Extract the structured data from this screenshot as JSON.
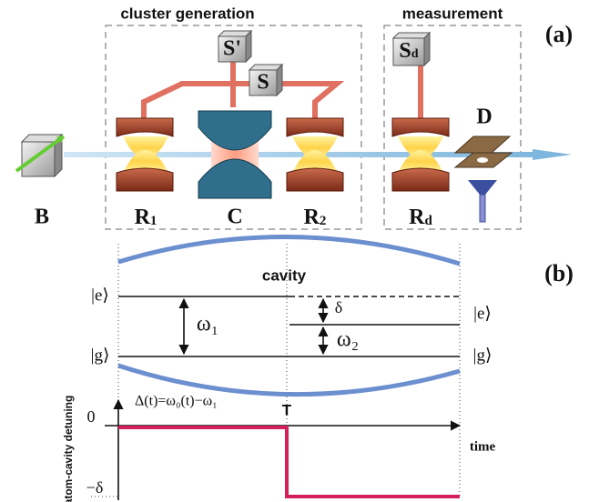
{
  "panel_a": {
    "label": "(a)",
    "cluster_box_title": "cluster generation",
    "measurement_box_title": "measurement",
    "sources": {
      "s_prime": "S'",
      "s": "S",
      "s_d": {
        "main": "S",
        "sub": "d"
      }
    },
    "components": {
      "b": "B",
      "r1": {
        "main": "R",
        "sub": "1"
      },
      "c": "C",
      "r2": {
        "main": "R",
        "sub": "2"
      },
      "rd": {
        "main": "R",
        "sub": "d"
      },
      "d": "D"
    }
  },
  "panel_b": {
    "label": "(b)",
    "cavity": "cavity",
    "levels": {
      "e_left": "|e⟩",
      "g_left": "|g⟩",
      "e_right": "|e⟩",
      "g_right": "|g⟩"
    },
    "omega1": "ω₁",
    "delta": "δ",
    "omega2": "ω₂",
    "y_axis_label": "atom-cavity detuning",
    "formula": "Δ(t)=ω₀(t)−ω₁",
    "zero": "0",
    "minus_delta": "−δ",
    "t_mark": "T",
    "time": "time"
  }
}
